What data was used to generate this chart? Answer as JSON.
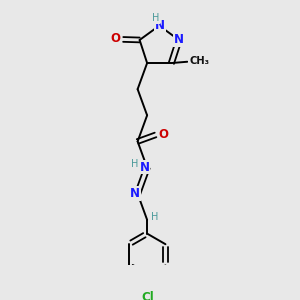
{
  "bg_color": "#e8e8e8",
  "atom_colors": {
    "N": "#1a1aff",
    "O": "#cc0000",
    "Cl": "#22aa22",
    "H": "#4a9a9a",
    "C": "#111111"
  },
  "title": ""
}
